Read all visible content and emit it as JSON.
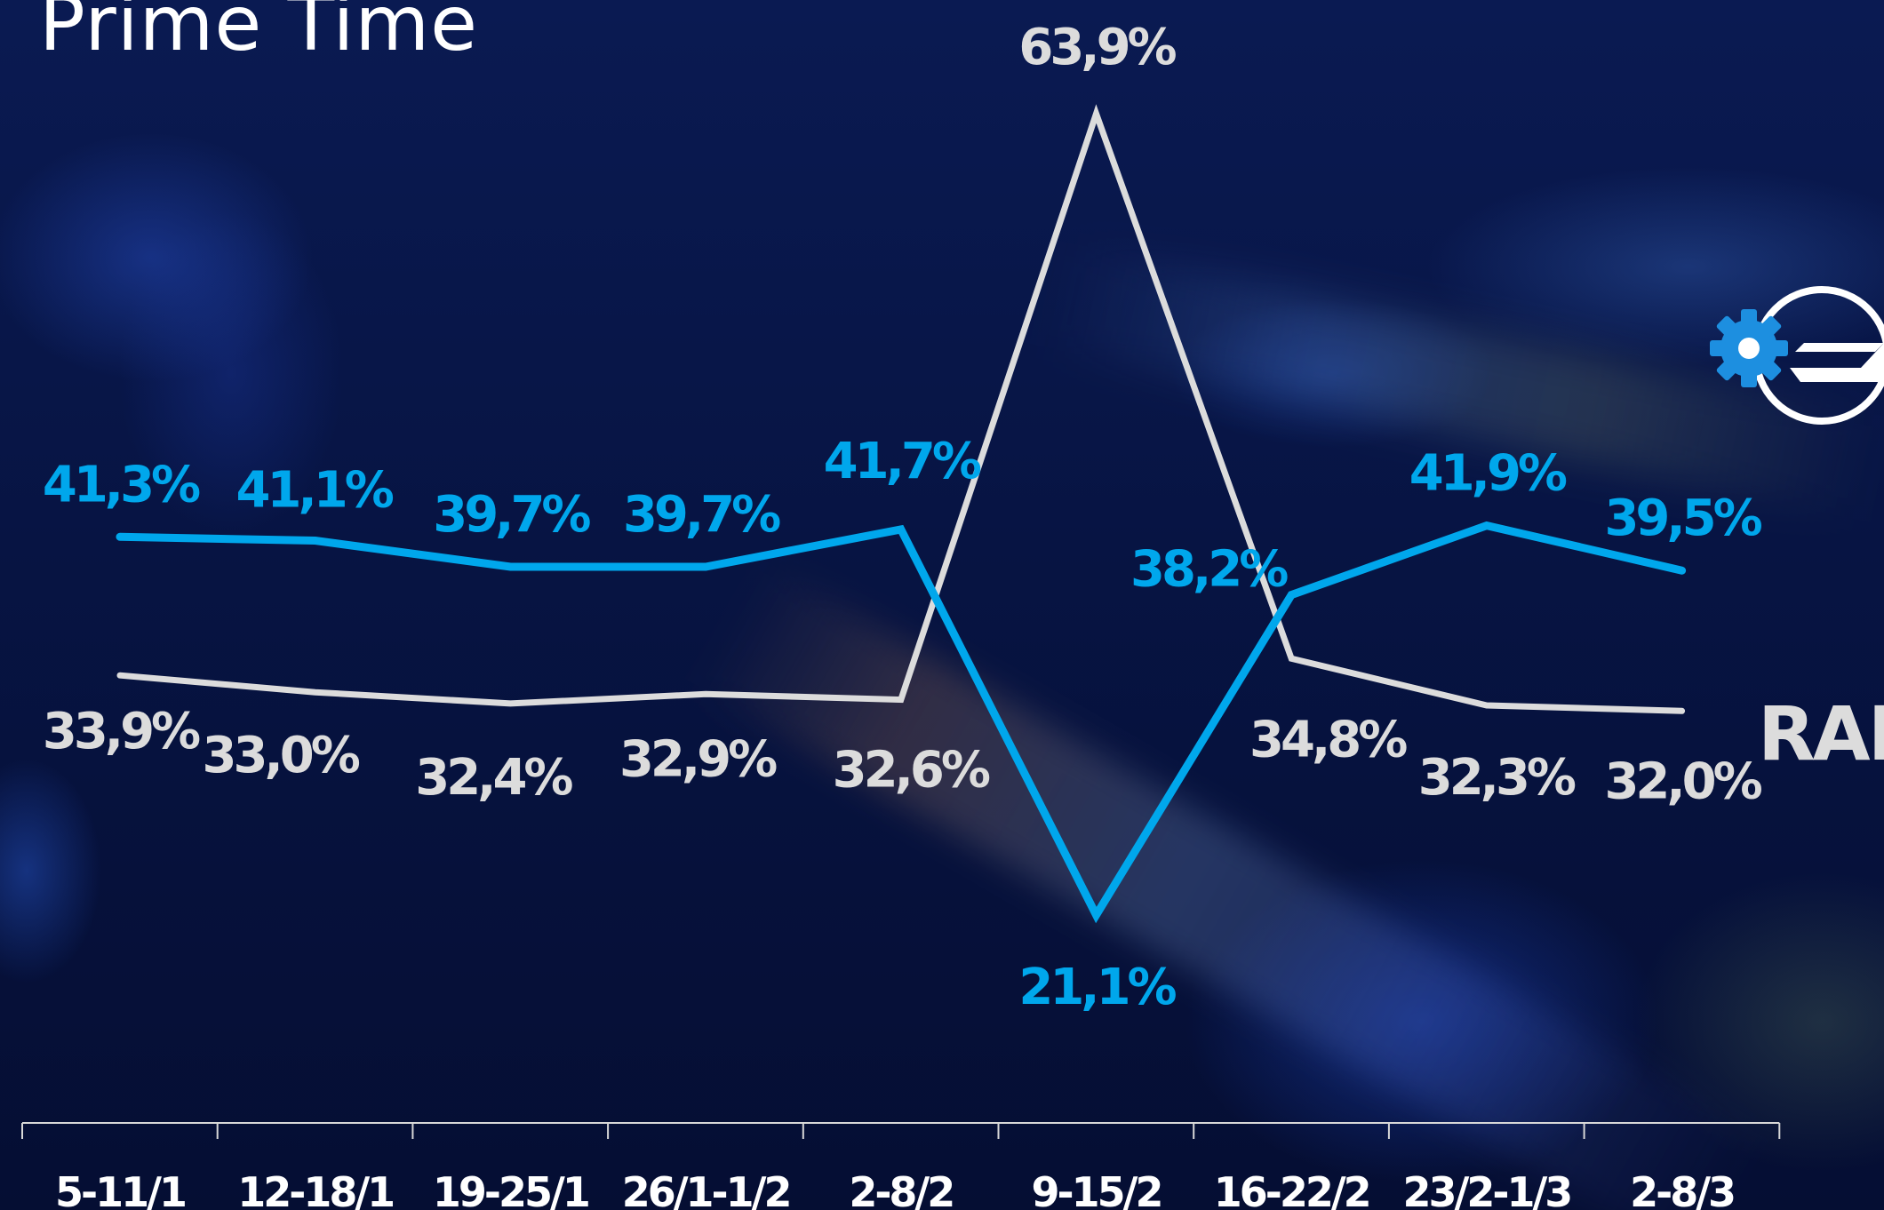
{
  "title": "Prime Time",
  "colors": {
    "series_blue": "#00a7ec",
    "series_white": "#dcdcdc",
    "axis": "#d8d8d8"
  },
  "logo": {
    "icon": "gear-in-circle-logo-icon"
  },
  "chart_data": {
    "type": "line",
    "categories": [
      "5-11/1",
      "12-18/1",
      "19-25/1",
      "26/1-1/2",
      "2-8/2",
      "9-15/2",
      "16-22/2",
      "23/2-1/3",
      "2-8/3"
    ],
    "ylim": [
      0,
      70
    ],
    "grid": false,
    "series": [
      {
        "color": "#00a7ec",
        "values": [
          41.3,
          41.1,
          39.7,
          39.7,
          41.7,
          21.1,
          38.2,
          41.9,
          39.5
        ],
        "labels": [
          "41,3%",
          "41,1%",
          "39,7%",
          "39,7%",
          "41,7%",
          "21,1%",
          "38,2%",
          "41,9%",
          "39,5%"
        ]
      },
      {
        "name": "RAI",
        "color": "#dcdcdc",
        "values": [
          33.9,
          33.0,
          32.4,
          32.9,
          32.6,
          63.9,
          34.8,
          32.3,
          32.0
        ],
        "labels": [
          "33,9%",
          "33,0%",
          "32,4%",
          "32,9%",
          "32,6%",
          "63,9%",
          "34,8%",
          "32,3%",
          "32,0%"
        ]
      }
    ]
  }
}
